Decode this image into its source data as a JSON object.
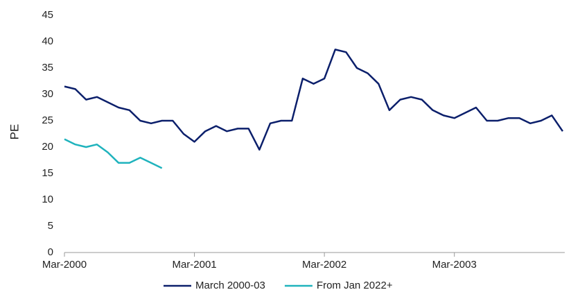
{
  "chart_data": {
    "type": "line",
    "y_label": "PE",
    "x": [
      "2000-03",
      "2000-04",
      "2000-05",
      "2000-06",
      "2000-07",
      "2000-08",
      "2000-09",
      "2000-10",
      "2000-11",
      "2000-12",
      "2001-01",
      "2001-02",
      "2001-03",
      "2001-04",
      "2001-05",
      "2001-06",
      "2001-07",
      "2001-08",
      "2001-09",
      "2001-10",
      "2001-11",
      "2001-12",
      "2002-01",
      "2002-02",
      "2002-03",
      "2002-04",
      "2002-05",
      "2002-06",
      "2002-07",
      "2002-08",
      "2002-09",
      "2002-10",
      "2002-11",
      "2002-12",
      "2003-01",
      "2003-02",
      "2003-03",
      "2003-04",
      "2003-05",
      "2003-06",
      "2003-07",
      "2003-08",
      "2003-09",
      "2003-10",
      "2003-11",
      "2003-12",
      "2004-01"
    ],
    "series": [
      {
        "name": "March 2000-03",
        "color": "#0b1f6b",
        "values": [
          31.5,
          31,
          29,
          29.5,
          28.5,
          27.5,
          27,
          25,
          24.5,
          25,
          25,
          22.5,
          21,
          23,
          24,
          23,
          23.5,
          23.5,
          19.5,
          24.5,
          25,
          25,
          33,
          32,
          33,
          38.5,
          38,
          35,
          34,
          32,
          27,
          29,
          29.5,
          29,
          27,
          26,
          25.5,
          26.5,
          27.5,
          25,
          25,
          25.5,
          25.5,
          24.5,
          25,
          26,
          23
        ]
      },
      {
        "name": "From Jan 2022+",
        "color": "#1fb3bd",
        "values": [
          21.5,
          20.5,
          20,
          20.5,
          19,
          17,
          17,
          18,
          17,
          16,
          null,
          null,
          null,
          null,
          null,
          null,
          null,
          null,
          null,
          null,
          null,
          null,
          null,
          null,
          null,
          null,
          null,
          null,
          null,
          null,
          null,
          null,
          null,
          null,
          null,
          null,
          null,
          null,
          null,
          null,
          null,
          null,
          null,
          null,
          null,
          null,
          null
        ]
      }
    ],
    "xlim": [
      "2000-03",
      "2004-01"
    ],
    "xticks": [
      {
        "value": "2000-03",
        "label": "Mar-2000"
      },
      {
        "value": "2001-03",
        "label": "Mar-2001"
      },
      {
        "value": "2002-03",
        "label": "Mar-2002"
      },
      {
        "value": "2003-03",
        "label": "Mar-2003"
      }
    ],
    "ylim": [
      0,
      45
    ],
    "yticks": [
      0,
      5,
      10,
      15,
      20,
      25,
      30,
      35,
      40,
      45
    ],
    "legend": "bottom"
  }
}
